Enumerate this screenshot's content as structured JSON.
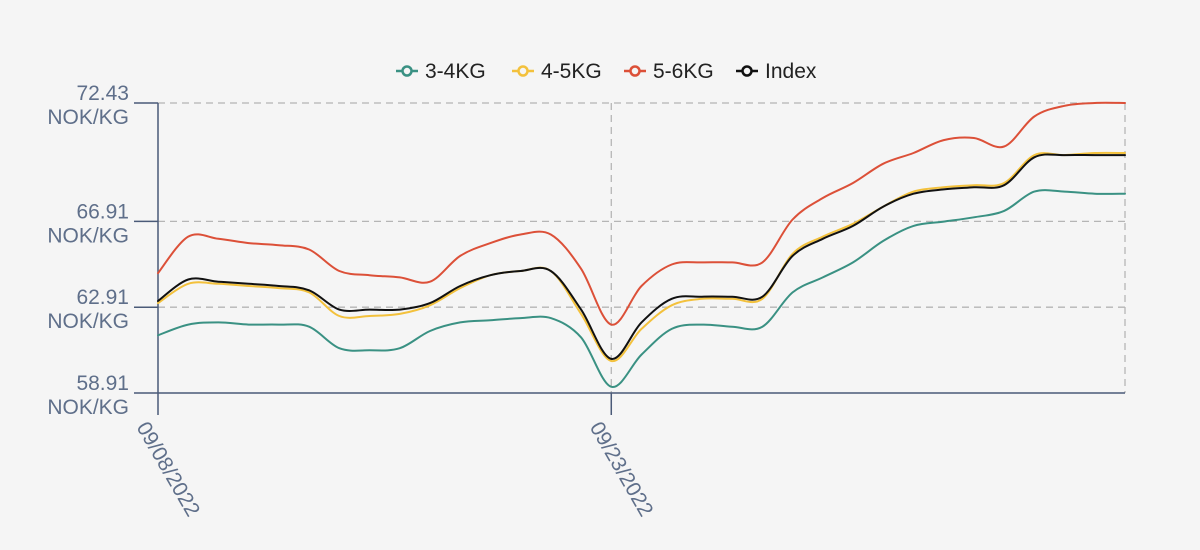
{
  "chart_data": {
    "type": "line",
    "x_ticks": [
      "09/08/2022",
      "09/23/2022"
    ],
    "y_ticks": [
      {
        "value": 58.91,
        "line1": "58.91",
        "line2": "NOK/KG"
      },
      {
        "value": 62.91,
        "line1": "62.91",
        "line2": "NOK/KG"
      },
      {
        "value": 66.91,
        "line1": "66.91",
        "line2": "NOK/KG"
      },
      {
        "value": 72.43,
        "line1": "72.43",
        "line2": "NOK/KG"
      }
    ],
    "ylim": [
      58.91,
      72.43
    ],
    "grid": true,
    "legend_position": "top-center",
    "x": [
      "09/08/2022",
      "09/09/2022",
      "09/10/2022",
      "09/11/2022",
      "09/12/2022",
      "09/13/2022",
      "09/14/2022",
      "09/15/2022",
      "09/16/2022",
      "09/17/2022",
      "09/18/2022",
      "09/19/2022",
      "09/20/2022",
      "09/21/2022",
      "09/22/2022",
      "09/23/2022",
      "09/24/2022",
      "09/25/2022",
      "09/26/2022",
      "09/27/2022",
      "09/28/2022",
      "09/29/2022",
      "09/30/2022",
      "10/01/2022",
      "10/02/2022",
      "10/03/2022",
      "10/04/2022",
      "10/05/2022",
      "10/06/2022",
      "10/07/2022",
      "10/08/2022",
      "10/09/2022",
      "10/10/2022"
    ],
    "series": [
      {
        "name": "3-4KG",
        "color": "#3a9183",
        "values": [
          61.6,
          62.1,
          62.2,
          62.1,
          62.1,
          62.0,
          61.0,
          60.9,
          61.0,
          61.8,
          62.2,
          62.3,
          62.4,
          62.4,
          61.5,
          59.2,
          60.7,
          61.9,
          62.1,
          62.0,
          62.0,
          63.6,
          64.3,
          65.0,
          66.0,
          66.7,
          66.9,
          67.1,
          67.4,
          68.3,
          68.3,
          68.2,
          68.2
        ]
      },
      {
        "name": "4-5KG",
        "color": "#f3c13c",
        "values": [
          63.1,
          64.0,
          64.0,
          63.9,
          63.8,
          63.6,
          62.5,
          62.5,
          62.6,
          63.0,
          63.8,
          64.4,
          64.6,
          64.6,
          62.6,
          60.4,
          61.9,
          63.0,
          63.3,
          63.3,
          63.3,
          65.4,
          66.2,
          66.8,
          67.6,
          68.3,
          68.5,
          68.6,
          68.7,
          70.0,
          70.0,
          70.1,
          70.1
        ]
      },
      {
        "name": "5-6KG",
        "color": "#dc5038",
        "values": [
          64.5,
          66.2,
          66.1,
          65.9,
          65.8,
          65.6,
          64.6,
          64.4,
          64.3,
          64.1,
          65.3,
          65.9,
          66.3,
          66.3,
          64.7,
          62.1,
          63.9,
          64.9,
          65.0,
          65.0,
          65.0,
          67.0,
          68.0,
          68.7,
          69.6,
          70.1,
          70.7,
          70.8,
          70.4,
          71.8,
          72.3,
          72.43,
          72.43
        ]
      },
      {
        "name": "Index",
        "color": "#111111",
        "values": [
          63.2,
          64.2,
          64.1,
          64.0,
          63.9,
          63.7,
          62.8,
          62.8,
          62.8,
          63.1,
          63.9,
          64.4,
          64.6,
          64.6,
          62.8,
          60.5,
          62.2,
          63.3,
          63.4,
          63.4,
          63.4,
          65.3,
          66.1,
          66.7,
          67.6,
          68.2,
          68.4,
          68.5,
          68.6,
          69.9,
          70.0,
          70.0,
          70.0
        ]
      }
    ]
  }
}
